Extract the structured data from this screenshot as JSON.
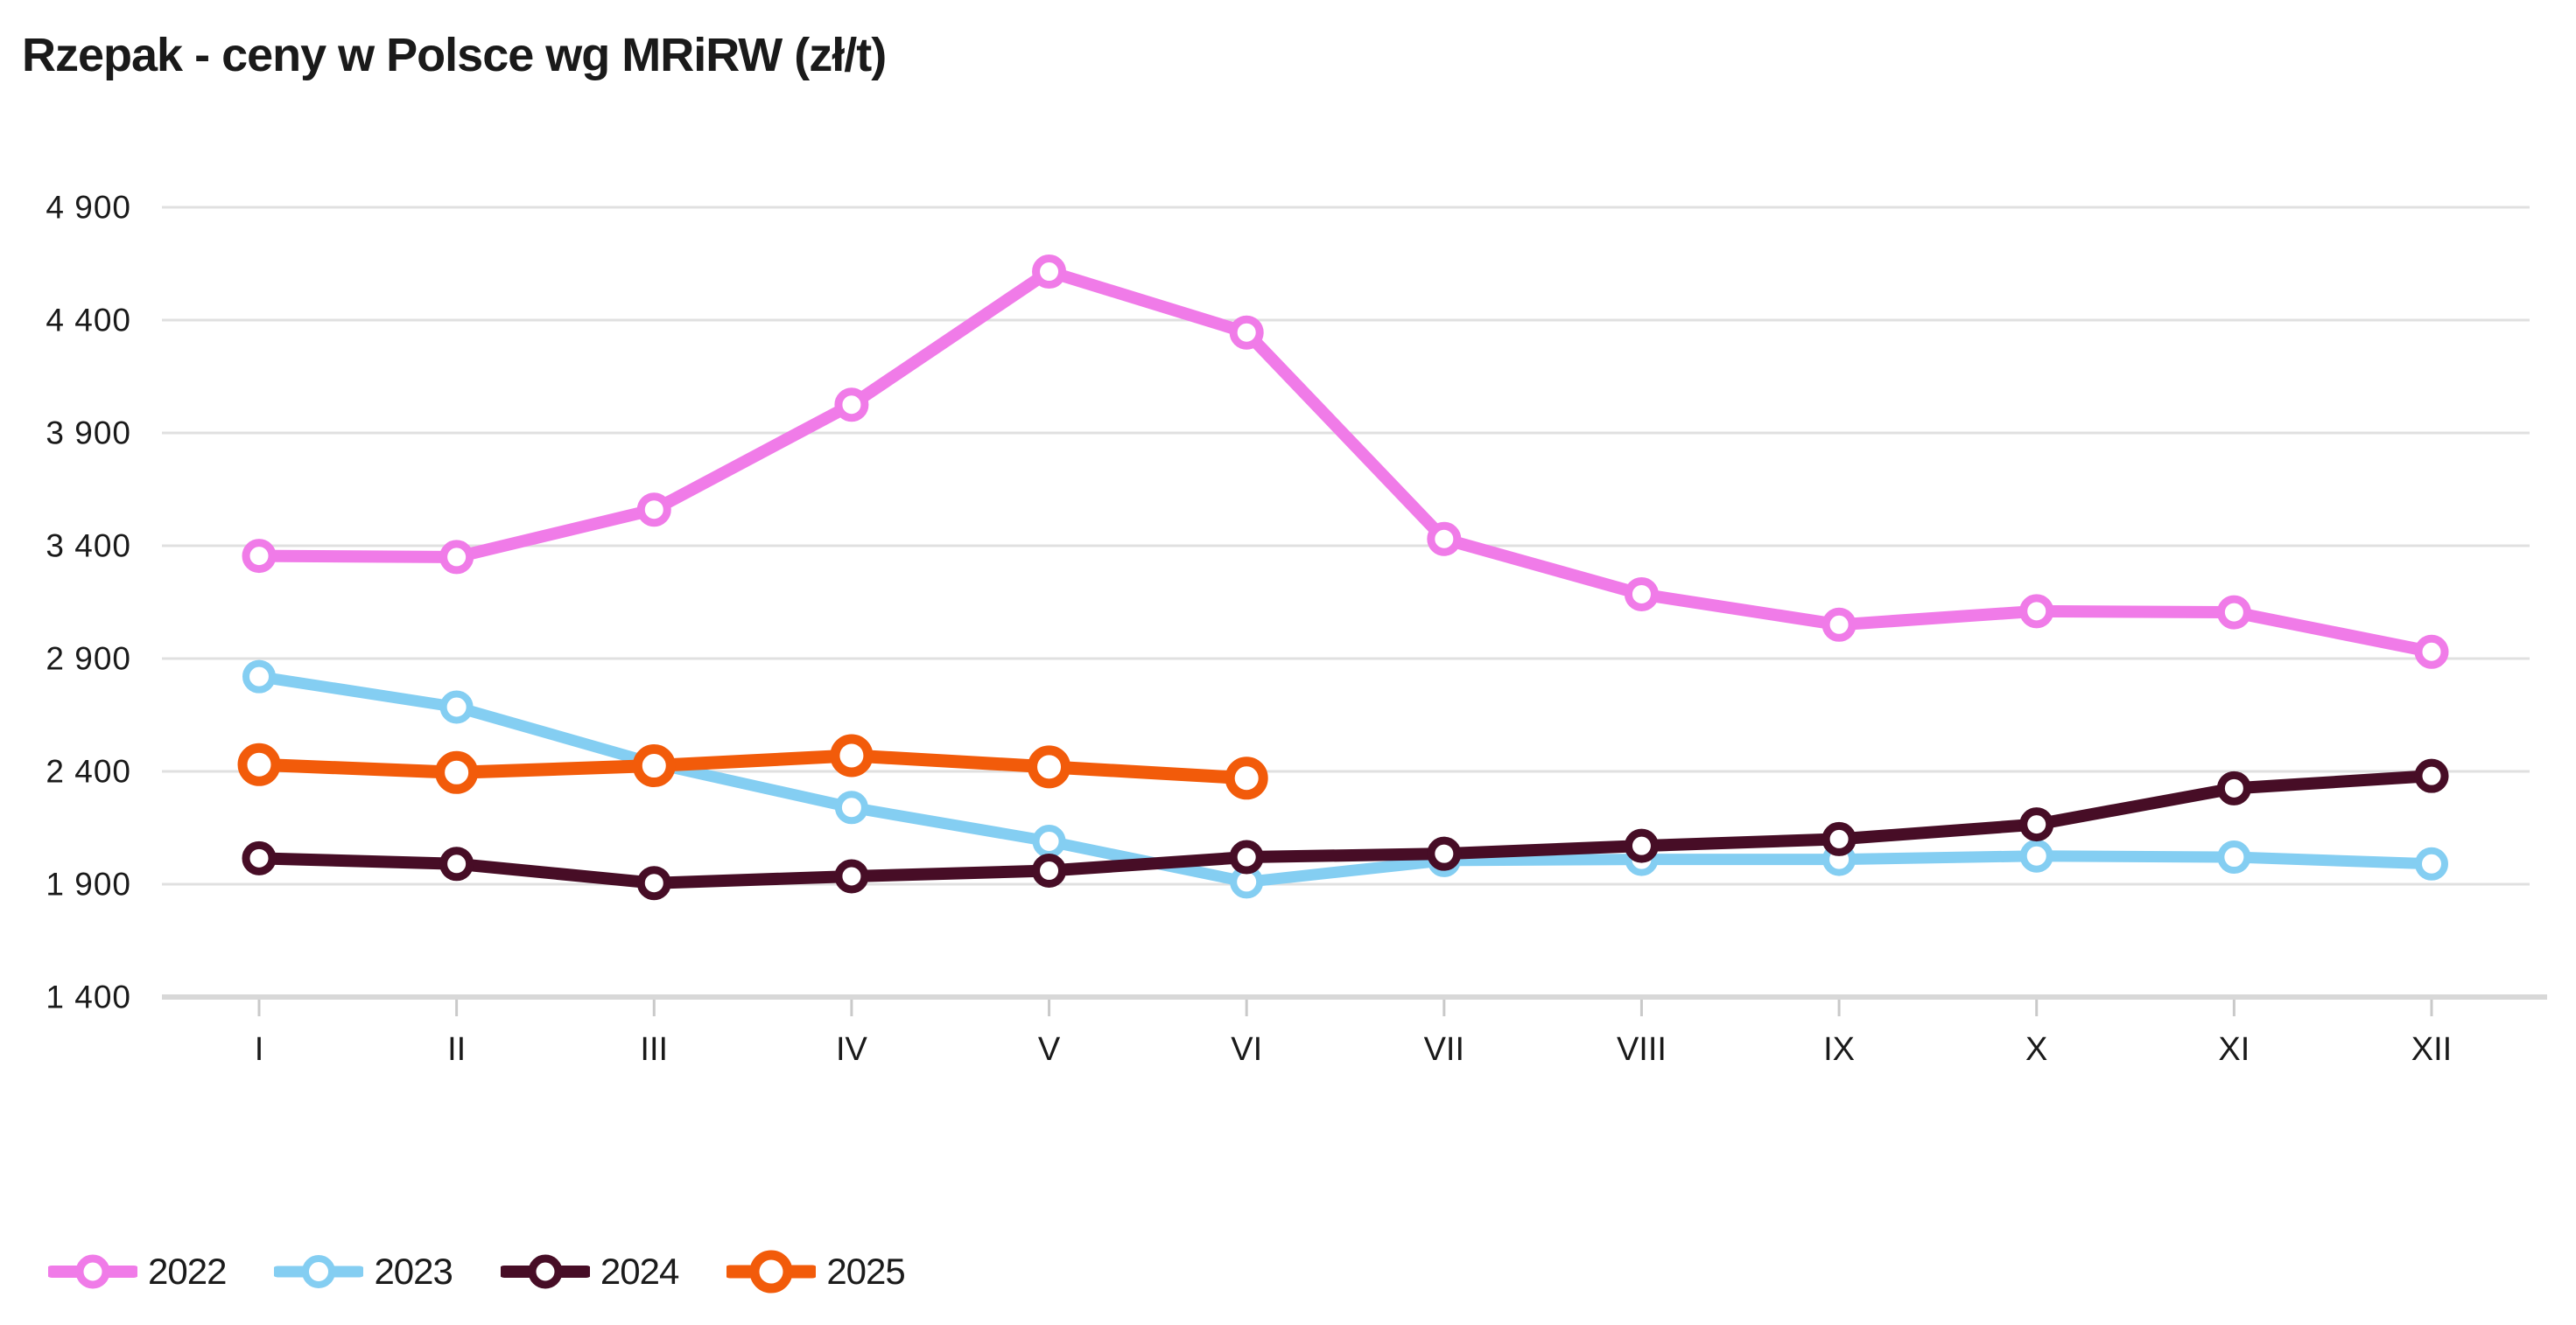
{
  "title": "Rzepak - ceny w Polsce wg MRiRW (zł/t)",
  "colors": {
    "text": "#1a1a1a",
    "gridline": "#e0e0e0",
    "axis_line": "#d8d8d8",
    "tick": "#c9c9c9",
    "series_2022": "#F07BE8",
    "series_2023": "#84CEF2",
    "series_2024": "#470D26",
    "series_2025": "#F25B0A"
  },
  "chart_data": {
    "type": "line",
    "title": "Rzepak - ceny w Polsce wg MRiRW (zł/t)",
    "xlabel": "",
    "ylabel": "",
    "categories": [
      "I",
      "II",
      "III",
      "IV",
      "V",
      "VI",
      "VII",
      "VIII",
      "IX",
      "X",
      "XI",
      "XII"
    ],
    "y_ticks": [
      {
        "label": "4 900",
        "value": 4900
      },
      {
        "label": "4 400",
        "value": 4400
      },
      {
        "label": "3 900",
        "value": 3900
      },
      {
        "label": "3 400",
        "value": 3400
      },
      {
        "label": "2 900",
        "value": 2900
      },
      {
        "label": "2 400",
        "value": 2400
      },
      {
        "label": "1 900",
        "value": 1900
      },
      {
        "label": "1 400",
        "value": 1400
      }
    ],
    "ylim": [
      1400,
      4900
    ],
    "grid": true,
    "legend_position": "bottom-left",
    "series": [
      {
        "name": "2022",
        "color": "#F07BE8",
        "values": [
          3355,
          3350,
          3560,
          4025,
          4615,
          4345,
          3430,
          3185,
          3050,
          3110,
          3105,
          2930
        ]
      },
      {
        "name": "2023",
        "color": "#84CEF2",
        "values": [
          2820,
          2685,
          2435,
          2240,
          2090,
          1910,
          2005,
          2010,
          2010,
          2025,
          2020,
          1990
        ]
      },
      {
        "name": "2024",
        "color": "#470D26",
        "values": [
          2015,
          1990,
          1905,
          1935,
          1960,
          2020,
          2035,
          2070,
          2100,
          2165,
          2325,
          2380
        ]
      },
      {
        "name": "2025",
        "color": "#F25B0A",
        "values": [
          2430,
          2395,
          2425,
          2470,
          2420,
          2370,
          null,
          null,
          null,
          null,
          null,
          null
        ]
      }
    ]
  }
}
